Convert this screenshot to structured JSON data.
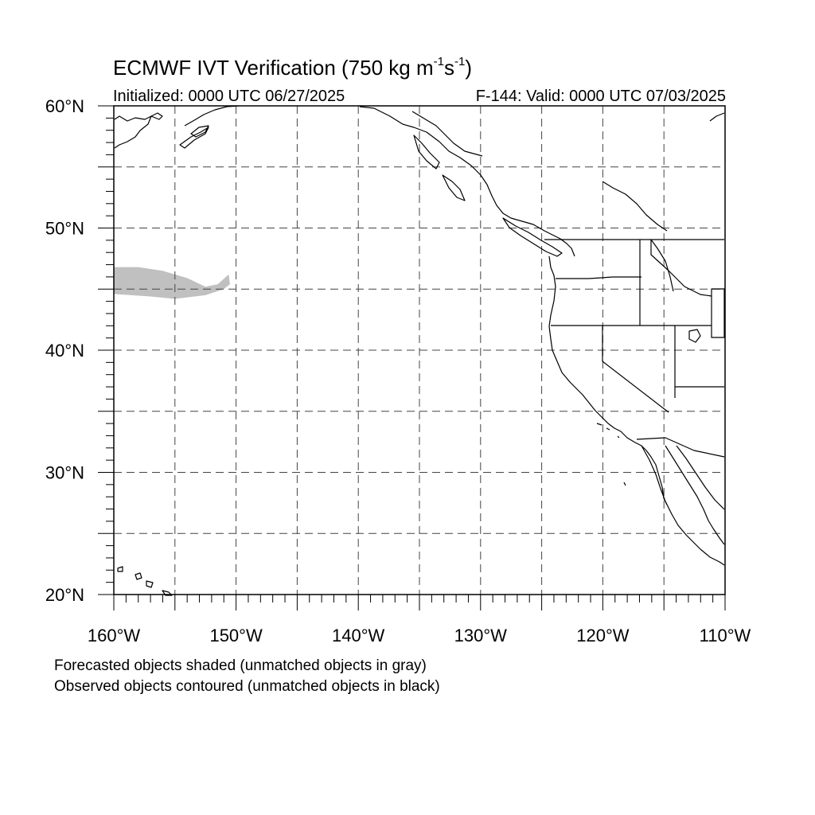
{
  "title": {
    "prefix": "ECMWF IVT Verification (750 kg m",
    "exp1": "-1",
    "mid": "s",
    "exp2": "-1",
    "suffix": ")"
  },
  "initialized": "Initialized: 0000 UTC 06/27/2025",
  "valid": "F-144: Valid: 0000 UTC 07/03/2025",
  "legend_notes": [
    "Forecasted objects shaded (unmatched objects in gray)",
    "Observed objects contoured (unmatched objects in black)"
  ],
  "map": {
    "lon_range": [
      -160,
      -110
    ],
    "lat_range": [
      20,
      60
    ],
    "lon_major_ticks": [
      {
        "value": -160,
        "label": "160°W"
      },
      {
        "value": -150,
        "label": "150°W"
      },
      {
        "value": -140,
        "label": "140°W"
      },
      {
        "value": -130,
        "label": "130°W"
      },
      {
        "value": -120,
        "label": "120°W"
      },
      {
        "value": -110,
        "label": "110°W"
      }
    ],
    "lat_major_ticks": [
      {
        "value": 20,
        "label": "20°N"
      },
      {
        "value": 30,
        "label": "30°N"
      },
      {
        "value": 40,
        "label": "40°N"
      },
      {
        "value": 50,
        "label": "50°N"
      },
      {
        "value": 60,
        "label": "60°N"
      }
    ],
    "gridlines_lon": [
      -155,
      -150,
      -145,
      -140,
      -135,
      -130,
      -125,
      -120,
      -115
    ],
    "gridlines_lat": [
      25,
      30,
      35,
      40,
      45,
      50,
      55
    ],
    "grid_style": "dashed",
    "forecast_objects": [
      {
        "status": "unmatched",
        "color": "#c0c0c0",
        "outline_lonlat": [
          [
            -160,
            46.8
          ],
          [
            -158,
            46.8
          ],
          [
            -156,
            46.5
          ],
          [
            -154,
            45.9
          ],
          [
            -152.5,
            45.2
          ],
          [
            -151.5,
            45.4
          ],
          [
            -150.6,
            46.2
          ],
          [
            -150.5,
            45.4
          ],
          [
            -151,
            45.0
          ],
          [
            -152.5,
            44.5
          ],
          [
            -155,
            44.2
          ],
          [
            -157,
            44.4
          ],
          [
            -160,
            44.6
          ]
        ]
      }
    ],
    "observed_objects": [],
    "colors": {
      "coast": "#000000",
      "grid": "#444444",
      "frame": "#000000"
    }
  }
}
